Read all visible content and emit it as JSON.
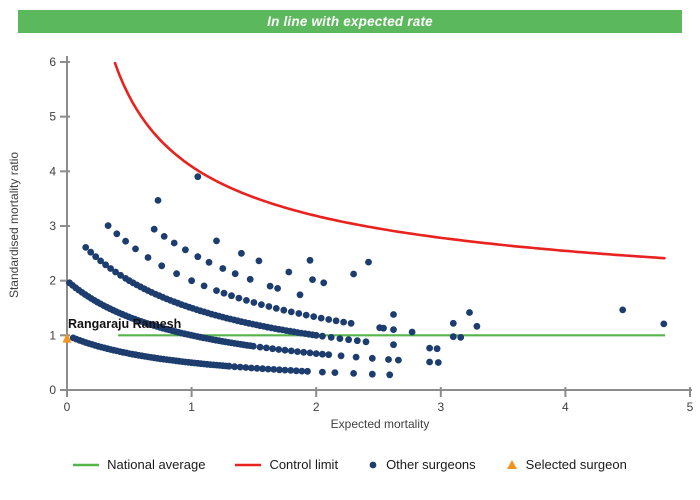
{
  "banner": {
    "text": "In line with expected rate",
    "bg_color": "#5cb85c",
    "text_color": "#ffffff"
  },
  "chart_data": {
    "type": "scatter",
    "title": "In line with expected rate",
    "xlabel": "Expected mortality",
    "ylabel": "Standardised mortality ratio",
    "xlim": [
      0,
      5
    ],
    "ylim": [
      0,
      6
    ],
    "x_ticks": [
      0,
      1,
      2,
      3,
      4,
      5
    ],
    "y_ticks": [
      0,
      1,
      2,
      3,
      4,
      5,
      6
    ],
    "grid": false,
    "axis_color": "#8c8c8c",
    "tick_label_color": "#404040",
    "axis_title_color": "#404040",
    "national_average": {
      "label": "National average",
      "y": 1,
      "x_start": 0.41,
      "x_end": 4.8,
      "color": "#55b44a"
    },
    "control_limit": {
      "label": "Control limit",
      "formula": "y = 1 + 3.09 / sqrt(x)",
      "intercept": 1,
      "coefficient": 3.09,
      "x_start": 0.385,
      "x_end": 4.8,
      "color": "#e8231f"
    },
    "other_surgeons": {
      "label": "Other surgeons",
      "color": "#1c3d6e",
      "dot_radius": 3.4,
      "band_rule": "y = k / (1 + x)",
      "bands": [
        {
          "k": 1,
          "segments": [
            {
              "from": 0.05,
              "to": 1.3,
              "step": 0.025
            },
            {
              "from": 1.3,
              "to": 1.95,
              "step": 0.045
            }
          ],
          "extra_x": [
            2.05,
            2.15,
            2.3,
            2.45,
            2.59
          ]
        },
        {
          "k": 2,
          "segments": [
            {
              "from": 0.02,
              "to": 1.5,
              "step": 0.025
            },
            {
              "from": 1.55,
              "to": 2.1,
              "step": 0.05
            }
          ],
          "extra_x": [
            2.2,
            2.32,
            2.45,
            2.58,
            2.66,
            2.91,
            2.98
          ]
        },
        {
          "k": 3,
          "segments": [
            {
              "from": 0.15,
              "to": 0.48,
              "step": 0.04
            },
            {
              "from": 0.5,
              "to": 2.0,
              "step": 0.03
            },
            {
              "from": 2.05,
              "to": 2.4,
              "step": 0.07
            }
          ],
          "extra_x": [
            2.62,
            2.91,
            2.97
          ]
        },
        {
          "k": 4,
          "segments": [
            {
              "from": 1.2,
              "to": 2.3,
              "step": 0.06
            }
          ],
          "extra_x": [
            0.33,
            0.4,
            0.47,
            0.55,
            0.65,
            0.76,
            0.88,
            1.0,
            1.1,
            2.51,
            2.54,
            2.62,
            2.77,
            3.1,
            3.16
          ]
        },
        {
          "k": 5,
          "segments": [],
          "extra_x": [
            0.7,
            0.78,
            0.86,
            0.95,
            1.05,
            1.14,
            1.25,
            1.35,
            1.47,
            1.63,
            1.69,
            1.87,
            2.62,
            3.1,
            3.29
          ]
        },
        {
          "k": 6,
          "segments": [],
          "extra_x": [
            0.73,
            1.2,
            1.4,
            1.54,
            1.78,
            1.97,
            2.06,
            3.23
          ]
        },
        {
          "k": 7,
          "segments": [],
          "extra_x": [
            1.95,
            2.3,
            4.79
          ]
        },
        {
          "k": 8,
          "segments": [],
          "extra_x": [
            1.05,
            2.42,
            4.46
          ]
        }
      ]
    },
    "selected_surgeon": {
      "label": "Selected surgeon",
      "name": "Rangaraju Ramesh",
      "x": 0.0,
      "y": 0.95,
      "color": "#f7941e",
      "name_color": "#111111"
    }
  },
  "legend": {
    "items": [
      {
        "label": "National average",
        "swatch": "line",
        "color": "#55b44a"
      },
      {
        "label": "Control limit",
        "swatch": "line",
        "color": "#e8231f"
      },
      {
        "label": "Other surgeons",
        "swatch": "dot",
        "color": "#1c3d6e"
      },
      {
        "label": "Selected surgeon",
        "swatch": "triangle",
        "color": "#f7941e"
      }
    ]
  }
}
